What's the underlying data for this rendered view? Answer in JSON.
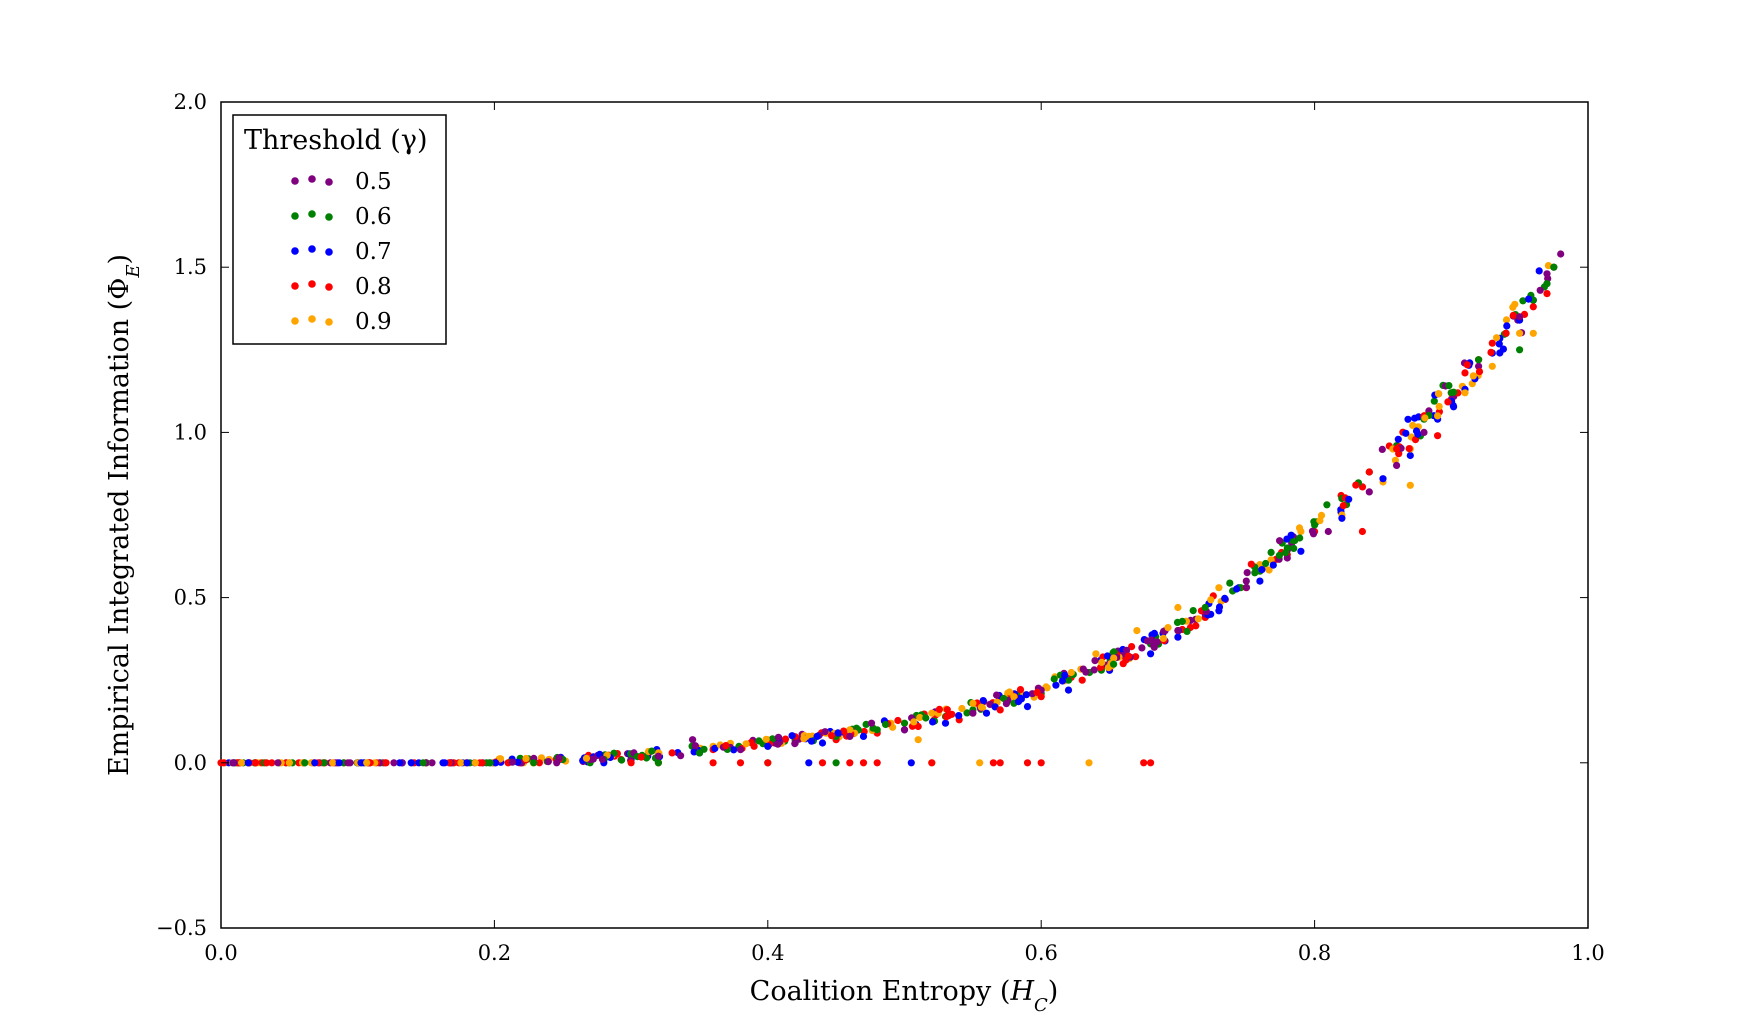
{
  "chart_data": {
    "type": "scatter",
    "xlabel": "Coalition Entropy (H_C)",
    "ylabel": "Empirical Integrated Information (Φ_E)",
    "xlim": [
      0.0,
      1.0
    ],
    "ylim": [
      -0.5,
      2.0
    ],
    "xticks": [
      "0.0",
      "0.2",
      "0.4",
      "0.6",
      "0.8",
      "1.0"
    ],
    "yticks": [
      "−0.5",
      "0.0",
      "0.5",
      "1.0",
      "1.5",
      "2.0"
    ],
    "grid": false,
    "legend": {
      "title": "Threshold (γ)",
      "placement": "top-left",
      "entries": [
        "0.5",
        "0.6",
        "0.7",
        "0.8",
        "0.9"
      ]
    },
    "colors": {
      "0.5": "#800080",
      "0.6": "#008000",
      "0.7": "#0000ff",
      "0.8": "#ff0000",
      "0.9": "#ffa500"
    },
    "trend": {
      "description_values": [
        [
          0.0,
          0.0
        ],
        [
          0.2,
          0.0
        ],
        [
          0.3,
          0.02
        ],
        [
          0.4,
          0.06
        ],
        [
          0.5,
          0.12
        ],
        [
          0.6,
          0.22
        ],
        [
          0.7,
          0.4
        ],
        [
          0.8,
          0.72
        ],
        [
          0.9,
          1.12
        ],
        [
          0.95,
          1.35
        ],
        [
          0.98,
          1.52
        ]
      ]
    },
    "series": [
      {
        "name": "0.5",
        "x": [
          0.02,
          0.08,
          0.15,
          0.22,
          0.27,
          0.32,
          0.345,
          0.38,
          0.42,
          0.46,
          0.5,
          0.55,
          0.6,
          0.65,
          0.7,
          0.72,
          0.75,
          0.78,
          0.81,
          0.84,
          0.86,
          0.88,
          0.9,
          0.92,
          0.94,
          0.95,
          0.965,
          0.97,
          0.975,
          0.98
        ],
        "y": [
          0.0,
          0.0,
          0.0,
          0.0,
          0.01,
          0.02,
          0.07,
          0.04,
          0.06,
          0.08,
          0.1,
          0.15,
          0.22,
          0.3,
          0.4,
          0.45,
          0.55,
          0.62,
          0.7,
          0.82,
          0.9,
          1.0,
          1.1,
          1.2,
          1.3,
          1.35,
          1.43,
          1.48,
          1.5,
          1.54
        ]
      },
      {
        "name": "0.6",
        "x": [
          0.01,
          0.05,
          0.1,
          0.15,
          0.2,
          0.25,
          0.27,
          0.3,
          0.35,
          0.4,
          0.42,
          0.45,
          0.48,
          0.5,
          0.53,
          0.55,
          0.58,
          0.6,
          0.62,
          0.65,
          0.68,
          0.7,
          0.72,
          0.74,
          0.76,
          0.78,
          0.8,
          0.82,
          0.84,
          0.86,
          0.88,
          0.9,
          0.92,
          0.94,
          0.95,
          0.96,
          0.97,
          0.975,
          0.4,
          0.45,
          0.32
        ],
        "y": [
          0.0,
          0.0,
          0.0,
          0.0,
          0.0,
          0.01,
          0.0,
          0.02,
          0.03,
          0.05,
          0.07,
          0.08,
          0.1,
          0.12,
          0.14,
          0.16,
          0.18,
          0.21,
          0.25,
          0.3,
          0.36,
          0.4,
          0.47,
          0.52,
          0.58,
          0.65,
          0.72,
          0.8,
          0.88,
          0.96,
          1.04,
          1.12,
          1.22,
          1.3,
          1.25,
          1.4,
          1.45,
          1.5,
          0.0,
          0.0,
          0.0
        ]
      },
      {
        "name": "0.7",
        "x": [
          0.02,
          0.1,
          0.18,
          0.25,
          0.3,
          0.35,
          0.4,
          0.44,
          0.47,
          0.5,
          0.53,
          0.56,
          0.59,
          0.62,
          0.65,
          0.68,
          0.7,
          0.73,
          0.76,
          0.79,
          0.82,
          0.85,
          0.87,
          0.89,
          0.91,
          0.93,
          0.95,
          0.96,
          0.28,
          0.43,
          0.505
        ],
        "y": [
          0.0,
          0.0,
          0.0,
          0.01,
          0.01,
          0.03,
          0.05,
          0.06,
          0.08,
          0.1,
          0.12,
          0.15,
          0.17,
          0.22,
          0.28,
          0.33,
          0.38,
          0.46,
          0.55,
          0.64,
          0.74,
          0.86,
          0.93,
          1.04,
          1.13,
          1.24,
          1.34,
          1.4,
          0.0,
          0.0,
          0.0
        ]
      },
      {
        "name": "0.8",
        "x": [
          0.0,
          0.03,
          0.06,
          0.09,
          0.12,
          0.15,
          0.18,
          0.21,
          0.24,
          0.27,
          0.3,
          0.33,
          0.36,
          0.39,
          0.42,
          0.45,
          0.48,
          0.51,
          0.54,
          0.57,
          0.6,
          0.63,
          0.66,
          0.69,
          0.72,
          0.75,
          0.78,
          0.8,
          0.82,
          0.84,
          0.86,
          0.88,
          0.9,
          0.91,
          0.92,
          0.93,
          0.94,
          0.95,
          0.96,
          0.97,
          0.3,
          0.32,
          0.36,
          0.38,
          0.4,
          0.44,
          0.46,
          0.47,
          0.48,
          0.52,
          0.565,
          0.57,
          0.59,
          0.6,
          0.675,
          0.68,
          0.835,
          0.89
        ],
        "y": [
          0.0,
          0.0,
          0.0,
          0.0,
          0.0,
          0.0,
          0.0,
          0.0,
          0.01,
          0.01,
          0.02,
          0.03,
          0.04,
          0.05,
          0.06,
          0.07,
          0.09,
          0.11,
          0.13,
          0.16,
          0.2,
          0.25,
          0.3,
          0.37,
          0.44,
          0.53,
          0.63,
          0.7,
          0.8,
          0.88,
          0.95,
          1.05,
          1.12,
          1.18,
          1.22,
          1.27,
          1.3,
          1.35,
          1.38,
          1.42,
          0.0,
          0.0,
          0.0,
          0.0,
          0.0,
          0.0,
          0.0,
          0.0,
          0.0,
          0.0,
          0.0,
          0.0,
          0.0,
          0.0,
          0.0,
          0.0,
          0.7,
          0.99
        ]
      },
      {
        "name": "0.9",
        "x": [
          0.01,
          0.05,
          0.1,
          0.15,
          0.2,
          0.24,
          0.28,
          0.32,
          0.36,
          0.4,
          0.43,
          0.46,
          0.49,
          0.52,
          0.55,
          0.58,
          0.61,
          0.64,
          0.67,
          0.7,
          0.73,
          0.76,
          0.79,
          0.82,
          0.85,
          0.87,
          0.89,
          0.91,
          0.93,
          0.95,
          0.96,
          0.51,
          0.52,
          0.555,
          0.635,
          0.87
        ],
        "y": [
          0.0,
          0.0,
          0.0,
          0.0,
          0.0,
          0.01,
          0.02,
          0.03,
          0.05,
          0.07,
          0.08,
          0.1,
          0.12,
          0.15,
          0.18,
          0.2,
          0.26,
          0.33,
          0.4,
          0.47,
          0.53,
          0.6,
          0.7,
          0.75,
          0.85,
          0.95,
          1.05,
          1.12,
          1.2,
          1.3,
          1.3,
          0.07,
          0.0,
          0.0,
          0.0,
          0.84
        ]
      }
    ]
  }
}
